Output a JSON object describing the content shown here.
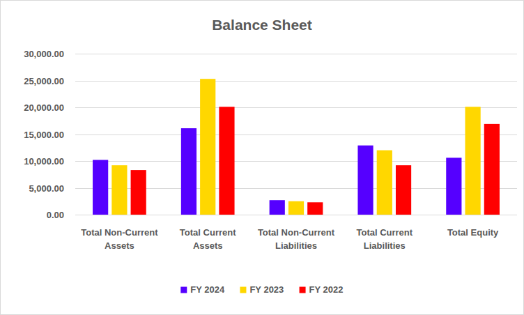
{
  "chart_data": {
    "type": "bar",
    "title": "Balance Sheet",
    "categories": [
      "Total Non-Current Assets",
      "Total Current Assets",
      "Total Non-Current Liabilities",
      "Total Current Liabilities",
      "Total Equity"
    ],
    "series": [
      {
        "name": "FY 2024",
        "color": "#5500ff",
        "values": [
          10200,
          16100,
          2700,
          12900,
          10600
        ]
      },
      {
        "name": "FY 2023",
        "color": "#ffd700",
        "values": [
          9200,
          25300,
          2500,
          12000,
          20100
        ]
      },
      {
        "name": "FY 2022",
        "color": "#ff0000",
        "values": [
          8300,
          20100,
          2300,
          9200,
          16900
        ]
      }
    ],
    "ylim": [
      0,
      30000
    ],
    "yticks": [
      {
        "value": 0,
        "label": "0.00"
      },
      {
        "value": 5000,
        "label": "5,000.00"
      },
      {
        "value": 10000,
        "label": "10,000.00"
      },
      {
        "value": 15000,
        "label": "15,000.00"
      },
      {
        "value": 20000,
        "label": "20,000.00"
      },
      {
        "value": 25000,
        "label": "25,000.00"
      },
      {
        "value": 30000,
        "label": "30,000.00"
      }
    ],
    "grid": true,
    "legend": "bottom"
  }
}
